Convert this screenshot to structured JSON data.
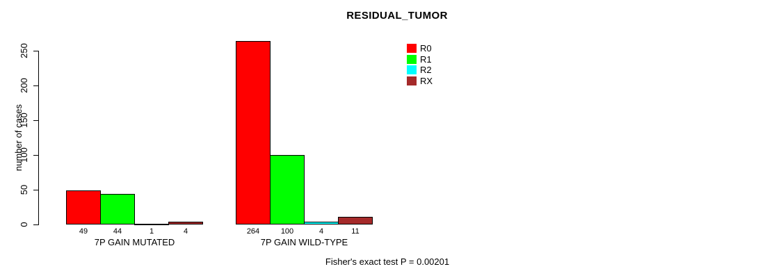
{
  "chart_data": {
    "type": "bar",
    "title": "RESIDUAL_TUMOR",
    "xlabel": "",
    "ylabel": "number of cases",
    "categories": [
      "7P GAIN MUTATED",
      "7P GAIN WILD-TYPE"
    ],
    "series": [
      {
        "name": "R0",
        "color": "#FF0000",
        "values": [
          49,
          264
        ]
      },
      {
        "name": "R1",
        "color": "#00FF00",
        "values": [
          44,
          100
        ]
      },
      {
        "name": "R2",
        "color": "#00FFFF",
        "values": [
          1,
          4
        ]
      },
      {
        "name": "RX",
        "color": "#A52A2A",
        "values": [
          4,
          11
        ]
      }
    ],
    "show_bar_values": true,
    "yticks": [
      0,
      50,
      100,
      150,
      200,
      250
    ],
    "ylim": [
      0,
      275
    ],
    "grid": false,
    "legend_position": "top-right",
    "legend_entries": [
      "R0",
      "R1",
      "R2",
      "RX"
    ],
    "annotation": "Fisher's exact test P = 0.00201",
    "background_color": "#FFFFFF",
    "axis_color": "#000000"
  }
}
